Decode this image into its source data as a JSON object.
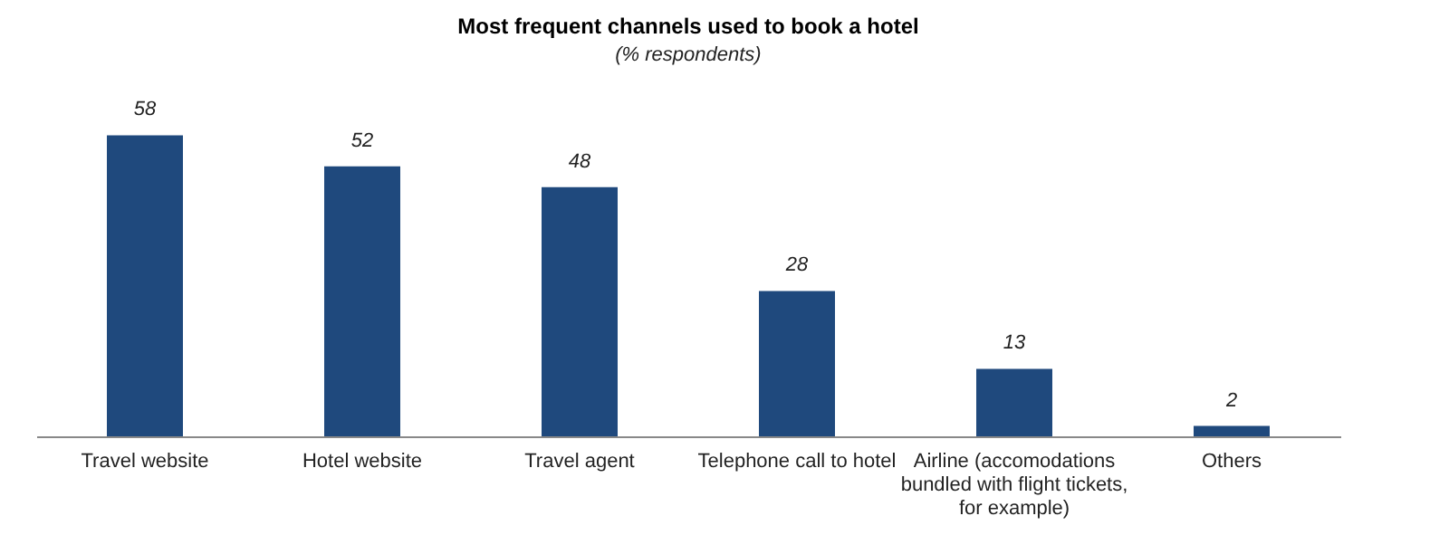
{
  "chart_data": {
    "type": "bar",
    "title": "Most frequent channels used to book a hotel",
    "subtitle": "(% respondents)",
    "categories": [
      "Travel website",
      "Hotel website",
      "Travel agent",
      "Telephone call to hotel",
      "Airline (accomodations bundled with flight tickets, for example)",
      "Others"
    ],
    "values": [
      58,
      52,
      48,
      28,
      13,
      2
    ],
    "color": "#1f497d",
    "data_labels": true
  }
}
